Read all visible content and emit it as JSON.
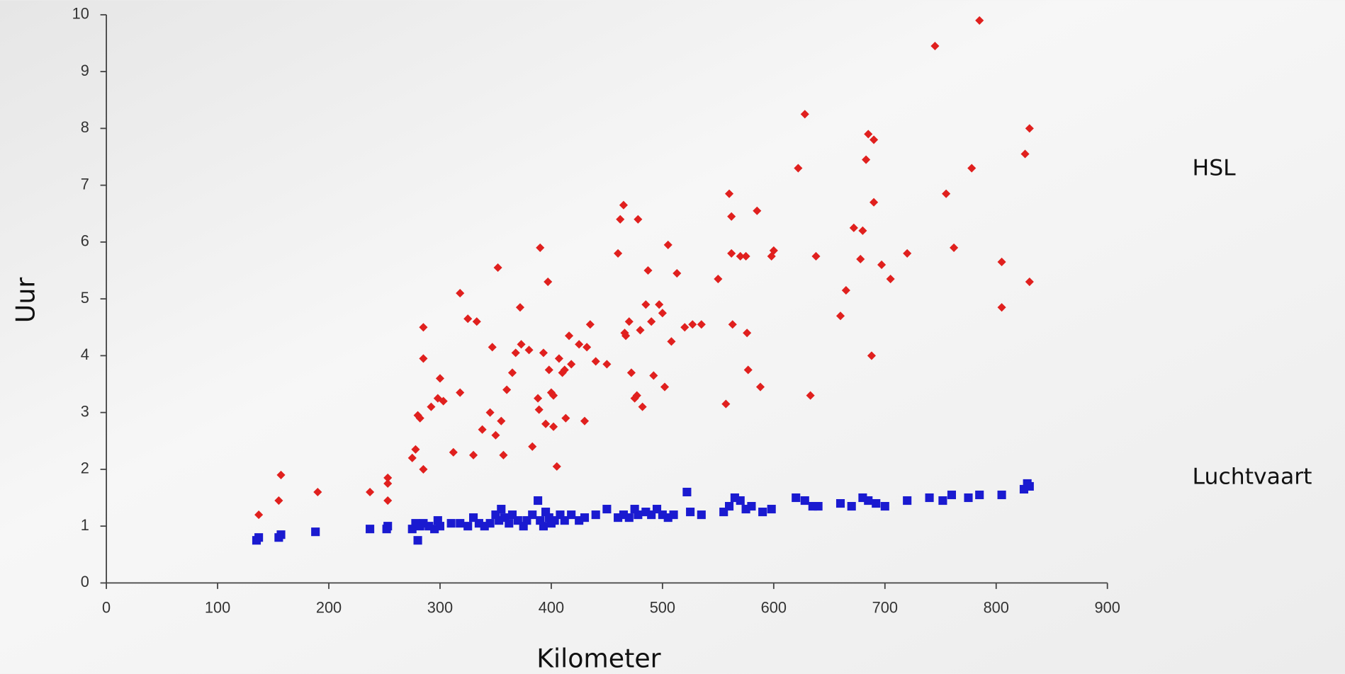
{
  "chart_data": {
    "type": "scatter",
    "x_label": "Kilometer",
    "y_label": "Uur",
    "xlim": [
      0,
      900
    ],
    "xticks": [
      0,
      100,
      200,
      300,
      400,
      500,
      600,
      700,
      800,
      900
    ],
    "ylim": [
      0,
      10
    ],
    "yticks": [
      0,
      1,
      2,
      3,
      4,
      5,
      6,
      7,
      8,
      9,
      10
    ],
    "grid": false,
    "series": [
      {
        "name": "HSL",
        "color": "#e0201e",
        "marker": "diamond",
        "x": [
          137,
          155,
          157,
          190,
          237,
          253,
          253,
          253,
          275,
          278,
          280,
          282,
          285,
          285,
          285,
          292,
          298,
          300,
          303,
          312,
          318,
          318,
          325,
          330,
          333,
          338,
          345,
          347,
          350,
          352,
          355,
          357,
          360,
          365,
          368,
          372,
          373,
          380,
          383,
          388,
          389,
          390,
          393,
          395,
          397,
          398,
          400,
          402,
          402,
          405,
          407,
          410,
          412,
          413,
          416,
          418,
          425,
          430,
          432,
          435,
          440,
          450,
          460,
          462,
          465,
          466,
          467,
          470,
          472,
          475,
          477,
          478,
          480,
          482,
          485,
          487,
          490,
          492,
          497,
          500,
          502,
          505,
          508,
          513,
          520,
          527,
          535,
          550,
          557,
          560,
          562,
          562,
          563,
          570,
          575,
          576,
          577,
          585,
          588,
          598,
          600,
          622,
          628,
          633,
          638,
          660,
          665,
          672,
          678,
          680,
          683,
          685,
          688,
          690,
          690,
          697,
          705,
          720,
          745,
          755,
          762,
          778,
          785,
          805,
          805,
          826,
          830,
          830
        ],
        "values": [
          1.2,
          1.45,
          1.9,
          1.6,
          1.6,
          1.85,
          1.75,
          1.45,
          2.2,
          2.35,
          2.95,
          2.9,
          2.0,
          4.5,
          3.95,
          3.1,
          3.25,
          3.6,
          3.2,
          2.3,
          3.35,
          5.1,
          4.65,
          2.25,
          4.6,
          2.7,
          3.0,
          4.15,
          2.6,
          5.55,
          2.85,
          2.25,
          3.4,
          3.7,
          4.05,
          4.85,
          4.2,
          4.1,
          2.4,
          3.25,
          3.05,
          5.9,
          4.05,
          2.8,
          5.3,
          3.75,
          3.35,
          2.75,
          3.3,
          2.05,
          3.95,
          3.7,
          3.75,
          2.9,
          4.35,
          3.85,
          4.2,
          2.85,
          4.15,
          4.55,
          3.9,
          3.85,
          5.8,
          6.4,
          6.65,
          4.4,
          4.35,
          4.6,
          3.7,
          3.25,
          3.3,
          6.4,
          4.45,
          3.1,
          4.9,
          5.5,
          4.6,
          3.65,
          4.9,
          4.75,
          3.45,
          5.95,
          4.25,
          5.45,
          4.5,
          4.55,
          4.55,
          5.35,
          3.15,
          6.85,
          6.45,
          5.8,
          4.55,
          5.75,
          5.75,
          4.4,
          3.75,
          6.55,
          3.45,
          5.75,
          5.85,
          7.3,
          8.25,
          3.3,
          5.75,
          4.7,
          5.15,
          6.25,
          5.7,
          6.2,
          7.45,
          7.9,
          4.0,
          7.8,
          6.7,
          5.6,
          5.35,
          5.8,
          9.45,
          6.85,
          5.9,
          7.3,
          9.9,
          5.65,
          4.85,
          7.55,
          8.0,
          5.3
        ]
      },
      {
        "name": "Luchtvaart",
        "color": "#1a1ad0",
        "marker": "square",
        "x": [
          135,
          137,
          155,
          157,
          188,
          237,
          252,
          253,
          275,
          278,
          280,
          282,
          285,
          290,
          295,
          298,
          300,
          310,
          318,
          325,
          330,
          335,
          340,
          345,
          350,
          353,
          355,
          358,
          362,
          365,
          370,
          375,
          378,
          383,
          388,
          390,
          393,
          395,
          398,
          400,
          403,
          408,
          412,
          418,
          425,
          430,
          440,
          450,
          460,
          465,
          470,
          475,
          478,
          485,
          490,
          495,
          500,
          505,
          510,
          522,
          525,
          535,
          555,
          560,
          565,
          570,
          575,
          580,
          590,
          598,
          620,
          628,
          635,
          640,
          660,
          670,
          680,
          685,
          692,
          700,
          720,
          740,
          752,
          760,
          775,
          785,
          805,
          825,
          828,
          830
        ],
        "values": [
          0.75,
          0.8,
          0.8,
          0.85,
          0.9,
          0.95,
          0.95,
          1.0,
          0.95,
          1.05,
          0.75,
          1.0,
          1.05,
          1.0,
          0.95,
          1.1,
          1.0,
          1.05,
          1.05,
          1.0,
          1.15,
          1.05,
          1.0,
          1.05,
          1.2,
          1.1,
          1.3,
          1.15,
          1.05,
          1.2,
          1.1,
          1.0,
          1.1,
          1.2,
          1.45,
          1.1,
          1.0,
          1.25,
          1.15,
          1.05,
          1.1,
          1.2,
          1.1,
          1.2,
          1.1,
          1.15,
          1.2,
          1.3,
          1.15,
          1.2,
          1.15,
          1.3,
          1.2,
          1.25,
          1.2,
          1.3,
          1.2,
          1.15,
          1.2,
          1.6,
          1.25,
          1.2,
          1.25,
          1.35,
          1.5,
          1.45,
          1.3,
          1.35,
          1.25,
          1.3,
          1.5,
          1.45,
          1.35,
          1.35,
          1.4,
          1.35,
          1.5,
          1.45,
          1.4,
          1.35,
          1.45,
          1.5,
          1.45,
          1.55,
          1.5,
          1.55,
          1.55,
          1.65,
          1.75,
          1.7
        ]
      }
    ]
  }
}
